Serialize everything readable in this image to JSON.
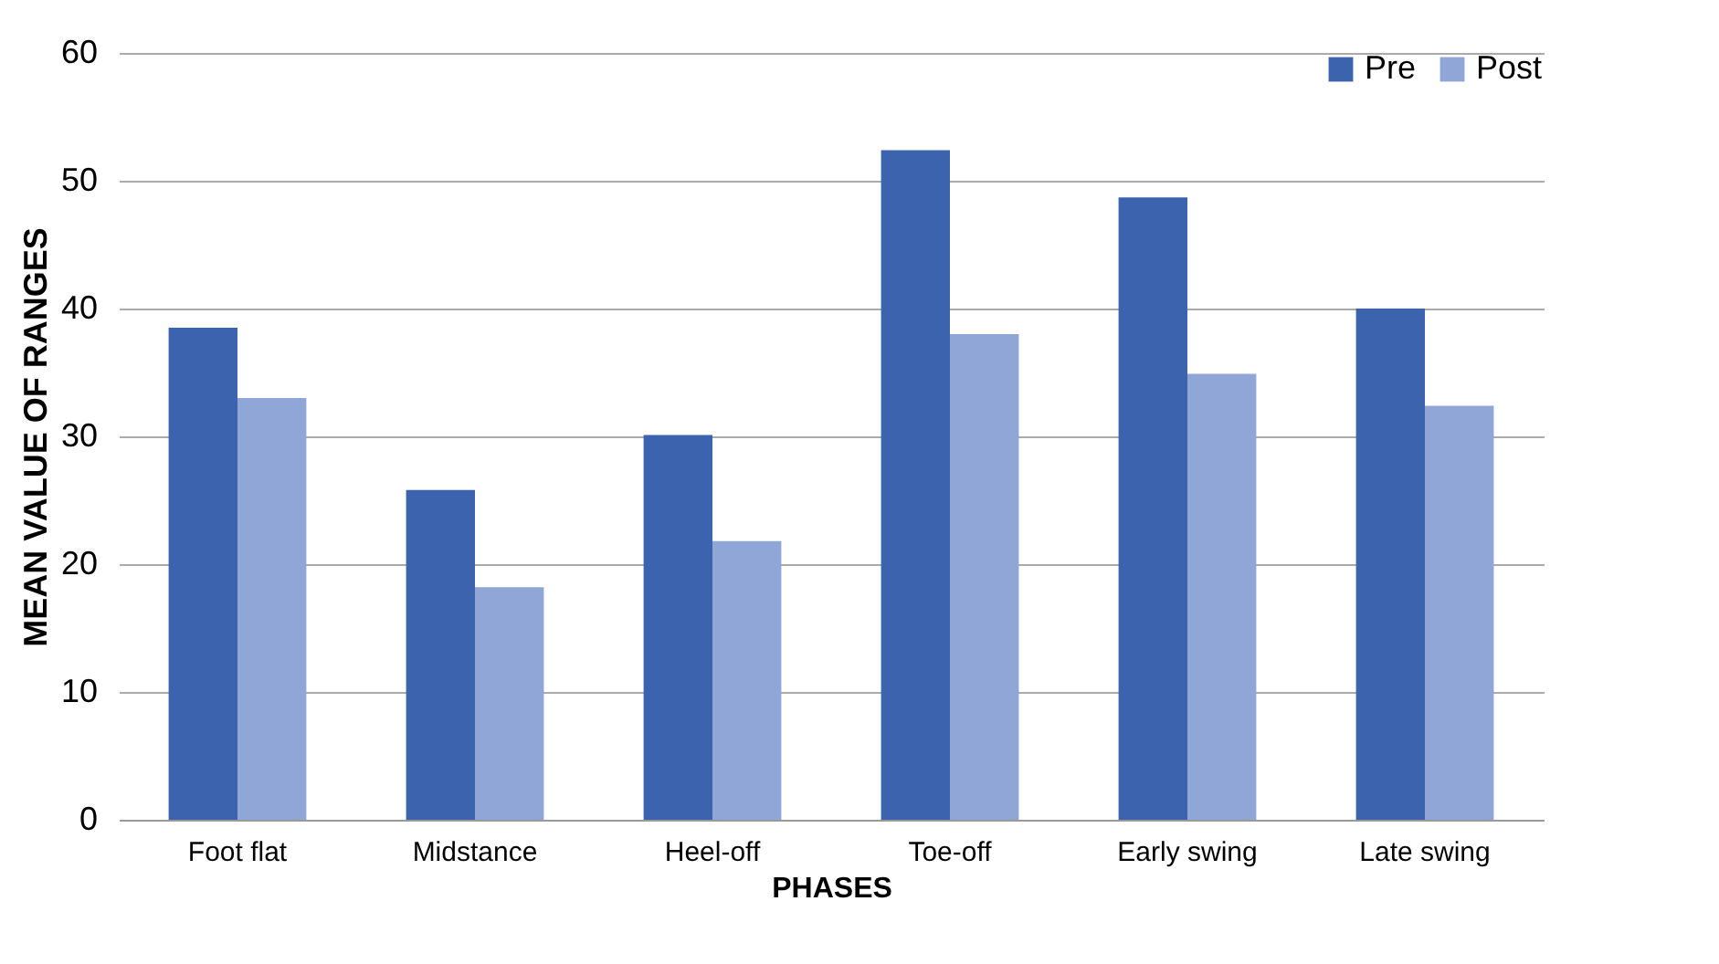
{
  "chart_data": {
    "type": "bar",
    "xlabel": "PHASES",
    "ylabel": "MEAN VALUE OF RANGES",
    "categories": [
      "Foot flat",
      "Midstance",
      "Heel-off",
      "Toe-off",
      "Early swing",
      "Late swing"
    ],
    "series": [
      {
        "name": "Pre",
        "color": "#3c64ae",
        "values": [
          38.5,
          25.8,
          30.1,
          52.4,
          48.7,
          40.0
        ]
      },
      {
        "name": "Post",
        "color": "#8fa6d6",
        "values": [
          33.0,
          18.2,
          21.8,
          38.0,
          34.9,
          32.4
        ]
      }
    ],
    "ylim": [
      0,
      60
    ],
    "yticks": [
      0,
      10,
      20,
      30,
      40,
      50,
      60
    ],
    "grid": "y",
    "legend": "top right"
  }
}
